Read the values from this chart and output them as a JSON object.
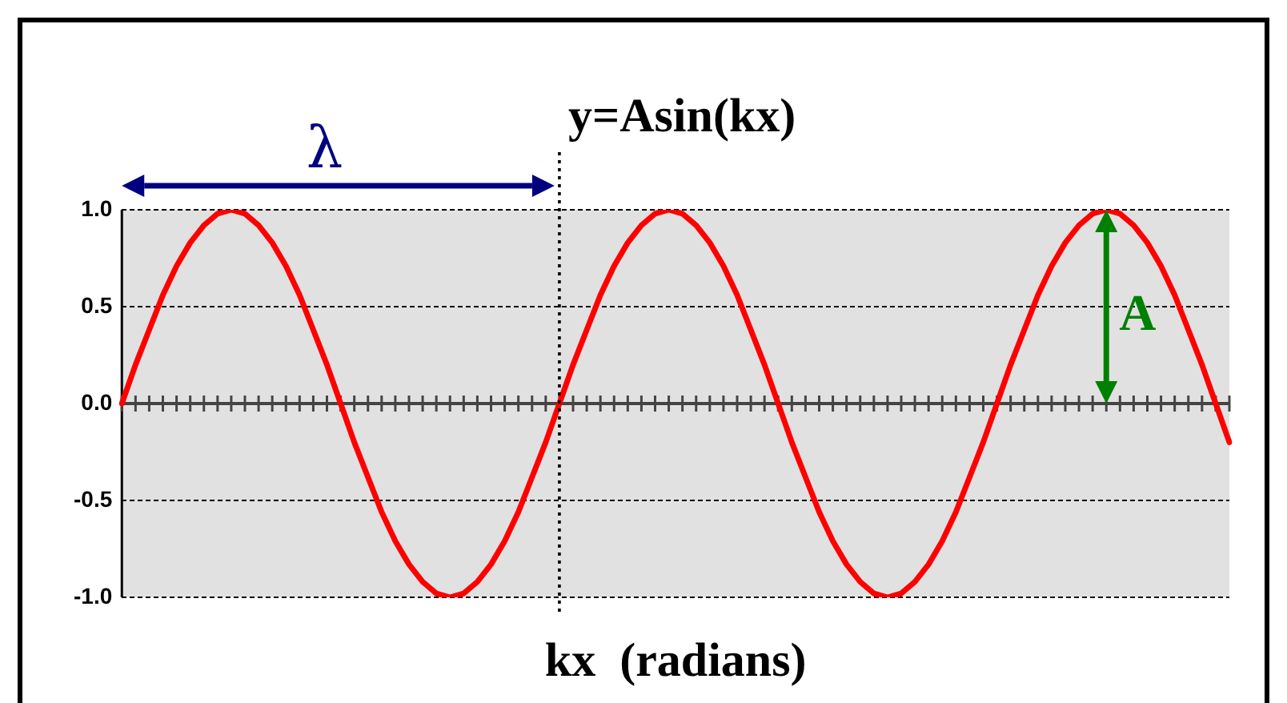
{
  "chart_data": {
    "type": "line",
    "title": "y=Asin(kx)",
    "xlabel": "kx  (radians)",
    "categories": [
      null,
      null,
      null,
      null,
      null,
      null,
      null,
      null,
      null,
      null,
      null,
      null,
      null,
      null,
      null,
      null,
      null,
      null,
      null,
      null,
      null,
      null,
      null,
      null,
      null,
      null,
      null,
      null,
      null,
      null,
      null,
      null,
      null,
      null,
      null,
      null,
      null,
      null,
      null,
      null,
      null,
      null,
      null,
      null,
      null,
      null,
      null,
      null,
      null,
      null,
      null,
      null,
      null,
      null,
      null,
      null,
      null,
      null,
      null,
      null,
      null,
      null,
      null,
      null,
      null,
      null,
      null,
      null,
      null,
      null,
      null,
      null,
      null,
      null,
      null,
      null,
      null,
      null,
      null,
      null,
      null,
      null
    ],
    "series": [
      {
        "color": "#ff0000",
        "values": [
          0,
          0.2,
          0.38,
          0.56,
          0.71,
          0.83,
          0.92,
          0.98,
          1,
          0.98,
          0.92,
          0.83,
          0.71,
          0.56,
          0.38,
          0.2,
          0,
          -0.2,
          -0.38,
          -0.56,
          -0.71,
          -0.83,
          -0.92,
          -0.98,
          -1,
          -0.98,
          -0.92,
          -0.83,
          -0.71,
          -0.56,
          -0.38,
          -0.2,
          0,
          0.2,
          0.38,
          0.56,
          0.71,
          0.83,
          0.92,
          0.98,
          1,
          0.98,
          0.92,
          0.83,
          0.71,
          0.56,
          0.38,
          0.2,
          0,
          -0.2,
          -0.38,
          -0.56,
          -0.71,
          -0.83,
          -0.92,
          -0.98,
          -1,
          -0.98,
          -0.92,
          -0.83,
          -0.71,
          -0.56,
          -0.38,
          -0.2,
          0,
          0.2,
          0.38,
          0.56,
          0.71,
          0.83,
          0.92,
          0.98,
          1,
          0.98,
          0.92,
          0.83,
          0.71,
          0.56,
          0.38,
          0.2,
          0,
          -0.2
        ]
      }
    ],
    "ylim": [
      -1,
      1
    ],
    "yticks": [
      {
        "value": 1,
        "label": "1.0"
      },
      {
        "value": 0.5,
        "label": "0.5"
      },
      {
        "value": 0,
        "label": "0.0"
      },
      {
        "value": -0.5,
        "label": "-0.5"
      },
      {
        "value": -1,
        "label": "-1.0"
      }
    ],
    "tick_labels": "y",
    "grid": "y",
    "legend": false,
    "marker": "none",
    "line_style": "solid",
    "annotations": [
      "λ",
      "A"
    ]
  }
}
